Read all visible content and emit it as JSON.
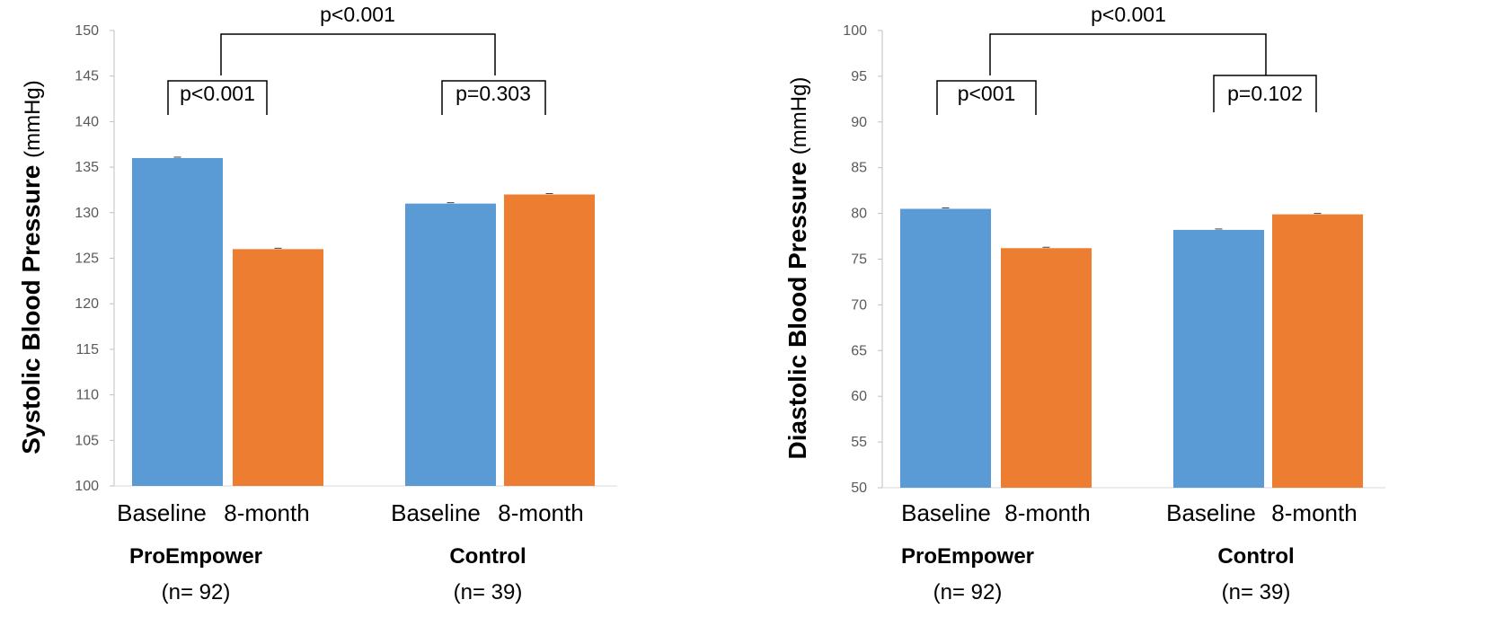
{
  "chart_data": [
    {
      "type": "bar",
      "ylabel_bold": "Systolic Blood Pressure",
      "ylabel_unit": "(mmHg)",
      "ylim": [
        100,
        150
      ],
      "yticks": [
        100,
        105,
        110,
        115,
        120,
        125,
        130,
        135,
        140,
        145,
        150
      ],
      "groups": [
        {
          "name": "ProEmpower",
          "n": "(n= 92)",
          "categories": [
            "Baseline",
            "8-month"
          ],
          "values": [
            136,
            126
          ],
          "pvalue": "p<0.001"
        },
        {
          "name": "Control",
          "n": "(n= 39)",
          "categories": [
            "Baseline",
            "8-month"
          ],
          "values": [
            131,
            132
          ],
          "pvalue": "p=0.303"
        }
      ],
      "between_pvalue": "p<0.001",
      "colors": [
        "#5B9BD5",
        "#ED7D31"
      ]
    },
    {
      "type": "bar",
      "ylabel_bold": "Diastolic Blood Pressure",
      "ylabel_unit": "(mmHg)",
      "ylim": [
        50,
        100
      ],
      "yticks": [
        50,
        55,
        60,
        65,
        70,
        75,
        80,
        85,
        90,
        95,
        100
      ],
      "groups": [
        {
          "name": "ProEmpower",
          "n": "(n= 92)",
          "categories": [
            "Baseline",
            "8-month"
          ],
          "values": [
            80.5,
            76.2
          ],
          "pvalue": "p<001"
        },
        {
          "name": "Control",
          "n": "(n= 39)",
          "categories": [
            "Baseline",
            "8-month"
          ],
          "values": [
            78.2,
            79.9
          ],
          "pvalue": "p=0.102"
        }
      ],
      "between_pvalue": "p<0.001",
      "colors": [
        "#5B9BD5",
        "#ED7D31"
      ]
    }
  ]
}
